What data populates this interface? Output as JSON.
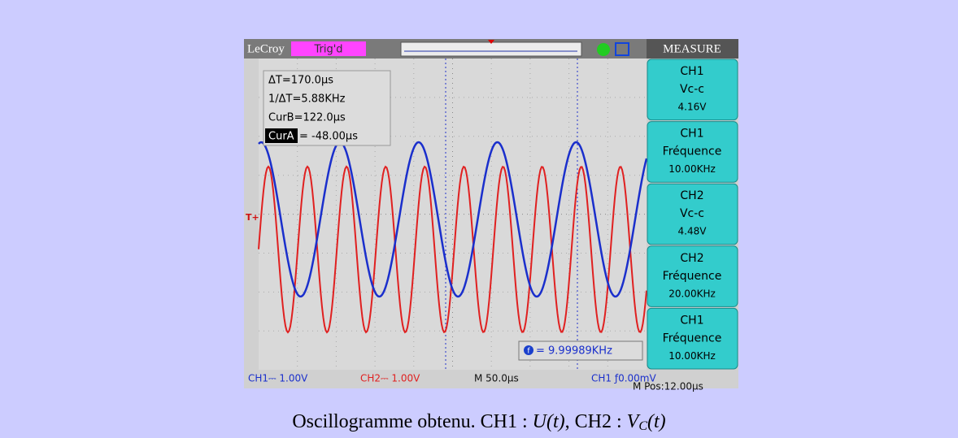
{
  "header": {
    "brand": "LeCroy",
    "status": "Trig'd",
    "menu": "MEASURE"
  },
  "cursor_readout": {
    "delta": "ΔT=170.0µs",
    "inverse": "1/ΔT=5.88KHz",
    "cursor_b": "CurB=122.0µs",
    "cursor_a_label": "CurA",
    "cursor_a_value": "= -48.00µs"
  },
  "trigger_marker": "T+",
  "measure": [
    {
      "channel": "CH1",
      "name": "Vc-c",
      "value": "4.16V"
    },
    {
      "channel": "CH1",
      "name": "Fréquence",
      "value": "10.00KHz"
    },
    {
      "channel": "CH2",
      "name": "Vc-c",
      "value": "4.48V"
    },
    {
      "channel": "CH2",
      "name": "Fréquence",
      "value": "20.00KHz"
    },
    {
      "channel": "CH1",
      "name": "Fréquence",
      "value": "10.00KHz"
    }
  ],
  "frequency_counter": {
    "icon": "f",
    "value": "= 9.99989KHz"
  },
  "footer": {
    "ch1": "CH1⎓ 1.00V",
    "ch2": "CH2⎓ 1.00V",
    "timebase": "M 50.0µs",
    "trigger": "CH1 ƒ0.00mV",
    "position": "M Pos:12.00µs"
  },
  "caption": {
    "text": "Oscillogramme obtenu. CH1 : ",
    "ch1_signal": "U(t)",
    "separator": ", CH2 : ",
    "ch2_symbol": "V",
    "ch2_subscript": "C",
    "ch2_argument": "(t)"
  }
}
